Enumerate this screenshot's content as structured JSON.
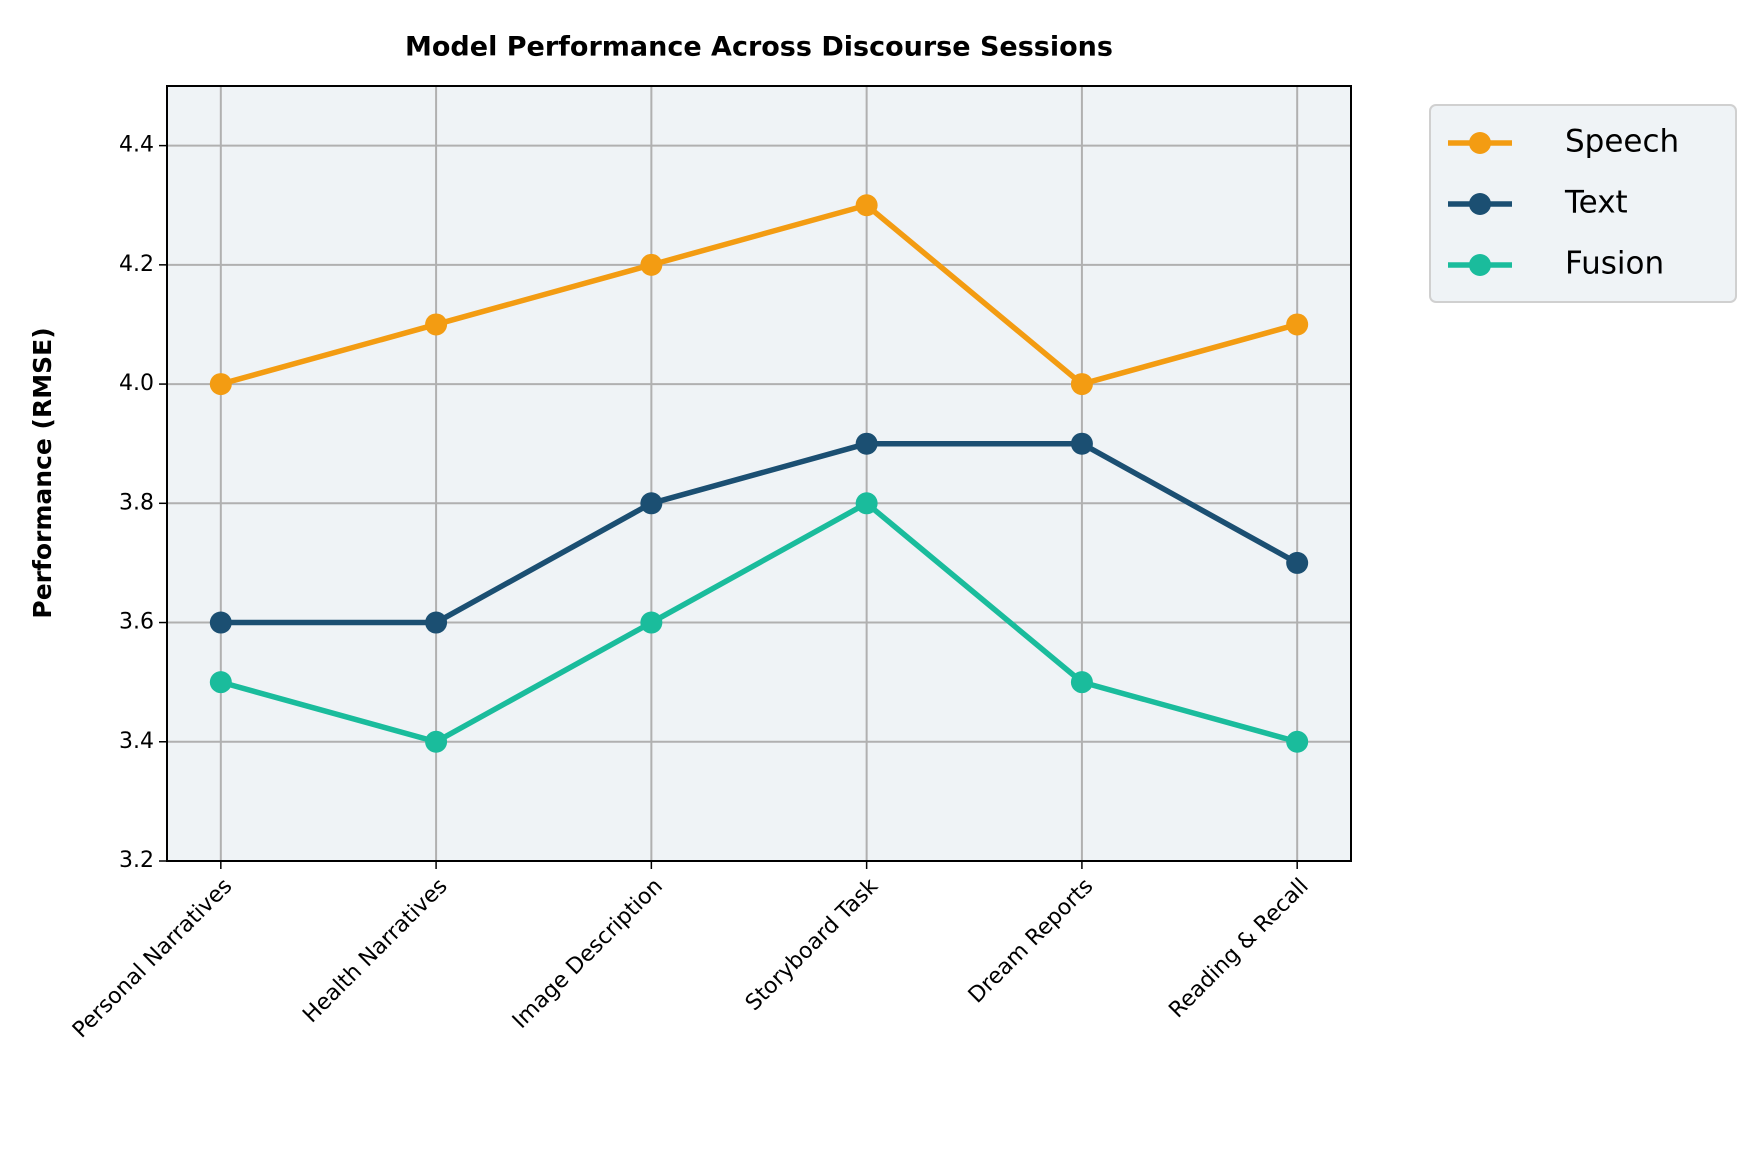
{
  "chart_data": {
    "type": "line",
    "title": "Model Performance Across Discourse Sessions",
    "ylabel": "Performance (RMSE)",
    "categories": [
      "Personal Narratives",
      "Health Narratives",
      "Image Description",
      "Storyboard Task",
      "Dream Reports",
      "Reading & Recall"
    ],
    "series": [
      {
        "name": "Speech",
        "color": "#f39c12",
        "values": [
          4.0,
          4.1,
          4.2,
          4.3,
          4.0,
          4.1
        ]
      },
      {
        "name": "Text",
        "color": "#1b4f72",
        "values": [
          3.6,
          3.6,
          3.8,
          3.9,
          3.9,
          3.7
        ]
      },
      {
        "name": "Fusion",
        "color": "#1abc9c",
        "values": [
          3.5,
          3.4,
          3.6,
          3.8,
          3.5,
          3.4
        ]
      }
    ],
    "ylim": [
      3.2,
      4.5
    ],
    "yticks": [
      3.2,
      3.4,
      3.6,
      3.8,
      {
        "value": 4,
        "label": "4.0"
      },
      4.2,
      4.4
    ],
    "grid": true
  }
}
